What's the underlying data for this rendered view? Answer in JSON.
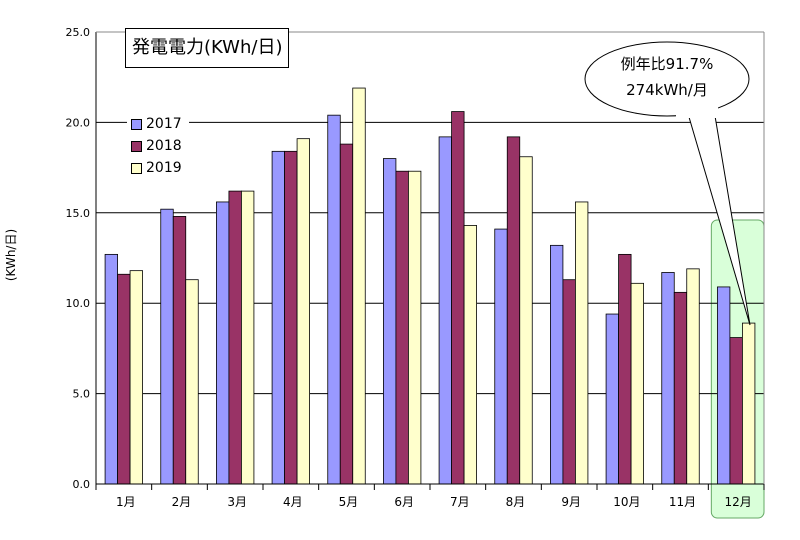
{
  "chart_data": {
    "type": "bar",
    "title": "発電電力(KWh/日)",
    "ylabel": "(KWh/日)",
    "categories": [
      "1月",
      "2月",
      "3月",
      "4月",
      "5月",
      "6月",
      "7月",
      "8月",
      "9月",
      "10月",
      "11月",
      "12月"
    ],
    "series": [
      {
        "name": "2017",
        "color": "#9999ff",
        "values": [
          12.7,
          15.2,
          15.6,
          18.4,
          20.4,
          18.0,
          19.2,
          14.1,
          13.2,
          9.4,
          11.7,
          10.9
        ]
      },
      {
        "name": "2018",
        "color": "#993366",
        "values": [
          11.6,
          14.8,
          16.2,
          18.4,
          18.8,
          17.3,
          20.6,
          19.2,
          11.3,
          12.7,
          10.6,
          8.1
        ]
      },
      {
        "name": "2019",
        "color": "#ffffcc",
        "values": [
          11.8,
          11.3,
          16.2,
          19.1,
          21.9,
          17.3,
          14.3,
          18.1,
          15.6,
          11.1,
          11.9,
          8.9
        ]
      }
    ],
    "ylim": [
      0,
      25
    ],
    "yticks": [
      "0.0",
      "5.0",
      "10.0",
      "15.0",
      "20.0",
      "25.0"
    ],
    "grid": true,
    "legend": "top-left",
    "highlight_category": "12月",
    "highlight_color": "#ccffcc",
    "annotation": {
      "line1": "例年比91.7%",
      "line2": "274kWh/月"
    }
  }
}
